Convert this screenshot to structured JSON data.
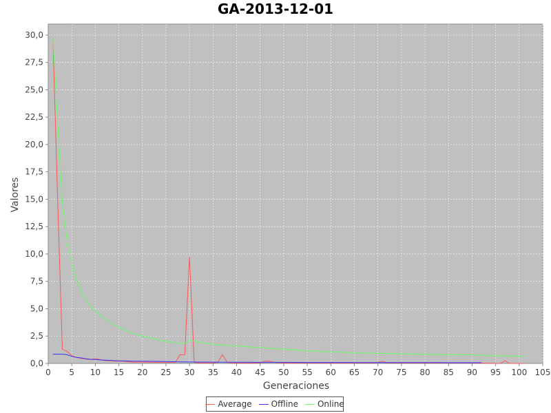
{
  "chart_data": {
    "type": "line",
    "title": "GA-2013-12-01",
    "xlabel": "Generaciones",
    "ylabel": "Valores",
    "xlim": [
      0,
      105
    ],
    "ylim": [
      0,
      31
    ],
    "xticks": [
      0,
      5,
      10,
      15,
      20,
      25,
      30,
      35,
      40,
      45,
      50,
      55,
      60,
      65,
      70,
      75,
      80,
      85,
      90,
      95,
      100,
      105
    ],
    "yticks": [
      0.0,
      2.5,
      5.0,
      7.5,
      10.0,
      12.5,
      15.0,
      17.5,
      20.0,
      22.5,
      25.0,
      27.5,
      30.0
    ],
    "ytick_labels": [
      "0,0",
      "2,5",
      "5,0",
      "7,5",
      "10,0",
      "12,5",
      "15,0",
      "17,5",
      "20,0",
      "22,5",
      "25,0",
      "27,5",
      "30,0"
    ],
    "grid": true,
    "background": "#c0c0c0",
    "legend_position": "bottom-center",
    "series": [
      {
        "name": "Average",
        "color": "#ff5555",
        "x": [
          1,
          2,
          3,
          4,
          5,
          6,
          7,
          8,
          9,
          10,
          11,
          12,
          13,
          14,
          15,
          16,
          17,
          18,
          19,
          20,
          21,
          22,
          23,
          24,
          25,
          26,
          27,
          28,
          29,
          30,
          31,
          32,
          33,
          34,
          35,
          36,
          37,
          38,
          39,
          40,
          41,
          42,
          43,
          44,
          45,
          46,
          47,
          48,
          49,
          50,
          55,
          60,
          65,
          69,
          70,
          71,
          72,
          75,
          80,
          85,
          90,
          95,
          96,
          97,
          98,
          100,
          101
        ],
        "y": [
          29.7,
          15.0,
          1.3,
          1.1,
          0.7,
          0.55,
          0.45,
          0.4,
          0.35,
          0.45,
          0.35,
          0.25,
          0.25,
          0.2,
          0.2,
          0.2,
          0.15,
          0.12,
          0.12,
          0.12,
          0.12,
          0.1,
          0.1,
          0.1,
          0.1,
          0.1,
          0.1,
          0.8,
          0.8,
          9.7,
          0.1,
          0.05,
          0.05,
          0.05,
          0.05,
          0.1,
          0.8,
          0.1,
          0.05,
          0.05,
          0.05,
          0.05,
          0.05,
          0.05,
          0.05,
          0.2,
          0.2,
          0.1,
          0.05,
          0.05,
          0.05,
          0.05,
          0.05,
          0.05,
          0.1,
          0.2,
          0.05,
          0.05,
          0.05,
          0.05,
          0.05,
          0.0,
          0.0,
          0.25,
          0.0,
          0.0,
          0.0
        ]
      },
      {
        "name": "Offline",
        "color": "#3333ff",
        "x": [
          1,
          2,
          3,
          4,
          5,
          6,
          7,
          8,
          9,
          10,
          11,
          12,
          13,
          14,
          15,
          16,
          17,
          18,
          19,
          20,
          25,
          27,
          28,
          30,
          35,
          40,
          45,
          50,
          55,
          60,
          65,
          70,
          75,
          80,
          85,
          90,
          92
        ],
        "y": [
          0.85,
          0.85,
          0.85,
          0.8,
          0.65,
          0.55,
          0.5,
          0.42,
          0.38,
          0.35,
          0.32,
          0.3,
          0.28,
          0.26,
          0.24,
          0.23,
          0.22,
          0.21,
          0.2,
          0.2,
          0.17,
          0.15,
          0.14,
          0.13,
          0.12,
          0.11,
          0.1,
          0.1,
          0.09,
          0.09,
          0.08,
          0.08,
          0.08,
          0.08,
          0.07,
          0.07,
          0.07
        ]
      },
      {
        "name": "Online",
        "color": "#66ff66",
        "x": [
          1,
          2,
          3,
          4,
          5,
          6,
          7,
          8,
          9,
          10,
          11,
          12,
          13,
          14,
          15,
          16,
          17,
          18,
          19,
          20,
          22,
          24,
          26,
          28,
          29,
          30,
          31,
          32,
          35,
          40,
          45,
          50,
          55,
          60,
          65,
          70,
          75,
          80,
          85,
          90,
          92,
          93,
          95,
          100,
          101
        ],
        "y": [
          29.7,
          22.0,
          14.8,
          11.2,
          9.0,
          7.6,
          6.6,
          5.8,
          5.2,
          4.8,
          4.4,
          4.1,
          3.8,
          3.5,
          3.3,
          3.1,
          2.9,
          2.75,
          2.6,
          2.5,
          2.3,
          2.1,
          1.95,
          1.85,
          1.8,
          2.15,
          2.05,
          1.95,
          1.75,
          1.6,
          1.45,
          1.3,
          1.15,
          1.05,
          0.98,
          0.92,
          0.88,
          0.84,
          0.8,
          0.78,
          0.76,
          0.75,
          0.7,
          0.66,
          0.64
        ]
      }
    ]
  },
  "legend": {
    "items": [
      {
        "label": "Average",
        "color": "#ff5555"
      },
      {
        "label": "Offline",
        "color": "#3333ff"
      },
      {
        "label": "Online",
        "color": "#66ff66"
      }
    ]
  }
}
